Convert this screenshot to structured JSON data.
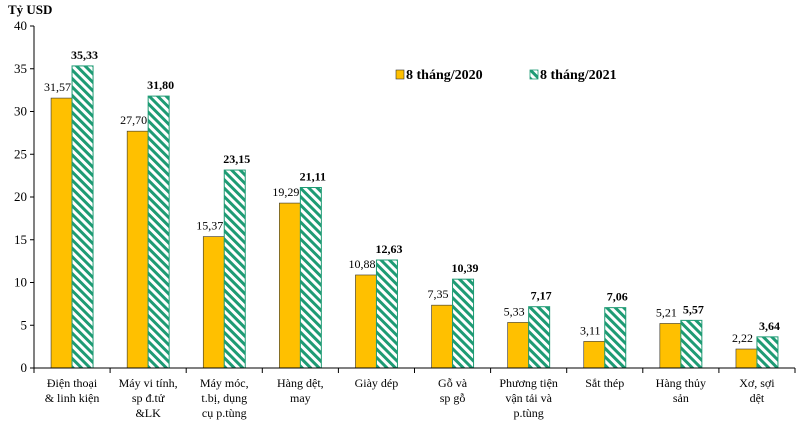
{
  "chart_data": {
    "type": "bar",
    "unit_label": "Tỷ USD",
    "categories": [
      [
        "Điện thoại",
        "& linh kiện"
      ],
      [
        "Máy vi tính,",
        "sp đ.tử",
        "&LK"
      ],
      [
        "Máy móc,",
        "t.bị, dụng",
        "cụ p.tùng"
      ],
      [
        "Hàng dệt,",
        "may"
      ],
      [
        "Giày dép"
      ],
      [
        "Gỗ và",
        "sp gỗ"
      ],
      [
        "Phương tiện",
        "vận tải và",
        "p.tùng"
      ],
      [
        "Sắt thép"
      ],
      [
        "Hàng thủy",
        "sản"
      ],
      [
        "Xơ, sợi",
        "dệt"
      ]
    ],
    "series": [
      {
        "name": "8 tháng/2020",
        "color": "#FFC000",
        "values": [
          31.57,
          27.7,
          15.37,
          19.29,
          10.88,
          7.35,
          5.33,
          3.11,
          5.21,
          2.22
        ],
        "labels": [
          "31,57",
          "27,70",
          "15,37",
          "19,29",
          "10,88",
          "7,35",
          "5,33",
          "3,11",
          "5,21",
          "2,22"
        ]
      },
      {
        "name": "8 tháng/2021",
        "color": "#1E9B74",
        "pattern": "diagonal-stripes",
        "values": [
          35.33,
          31.8,
          23.15,
          21.11,
          12.63,
          10.39,
          7.17,
          7.06,
          5.57,
          3.64
        ],
        "labels": [
          "35,33",
          "31,80",
          "23,15",
          "21,11",
          "12,63",
          "10,39",
          "7,17",
          "7,06",
          "5,57",
          "3,64"
        ]
      }
    ],
    "ylim": [
      0,
      40
    ],
    "yticks": [
      0,
      5,
      10,
      15,
      20,
      25,
      30,
      35,
      40
    ],
    "grid": false,
    "legend_position": "top-right"
  }
}
